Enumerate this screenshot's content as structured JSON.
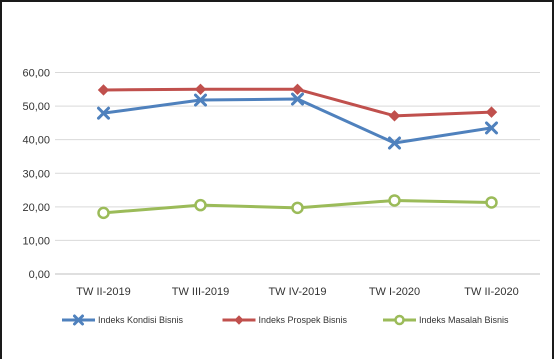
{
  "chart_data": {
    "type": "line",
    "categories": [
      "TW II-2019",
      "TW III-2019",
      "TW IV-2019",
      "TW I-2020",
      "TW II-2020"
    ],
    "series": [
      {
        "name": "Indeks Kondisi Bisnis",
        "values": [
          47.9,
          51.8,
          52.1,
          39.0,
          43.5
        ],
        "color": "#4F81BD",
        "marker": "x"
      },
      {
        "name": "Indeks Prospek Bisnis",
        "values": [
          54.8,
          55.0,
          55.0,
          47.1,
          48.2
        ],
        "color": "#C0504D",
        "marker": "diamond"
      },
      {
        "name": "Indeks Masalah Bisnis",
        "values": [
          18.2,
          20.5,
          19.7,
          21.9,
          21.3
        ],
        "color": "#9BBB59",
        "marker": "circle"
      }
    ],
    "ylim": [
      0,
      60
    ],
    "yticks": [
      0,
      10,
      20,
      30,
      40,
      50,
      60
    ],
    "ytick_labels": [
      "0,00",
      "10,00",
      "20,00",
      "30,00",
      "40,00",
      "50,00",
      "60,00"
    ],
    "grid": true,
    "legend": "bottom"
  }
}
